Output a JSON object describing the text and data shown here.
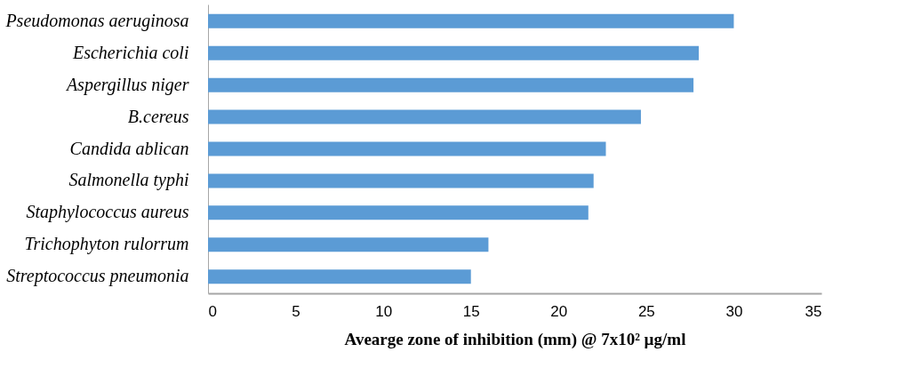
{
  "chart_data": {
    "type": "bar",
    "orientation": "horizontal",
    "xlabel": "Avearge zone of inhibition (mm) @ 7x10² µg/ml",
    "categories": [
      "Pseudomonas aeruginosa",
      "Escherichia coli",
      "Aspergillus niger",
      "B.cereus",
      "Candida ablican",
      "Salmonella typhi",
      "Staphylococcus aureus",
      "Trichophyton rulorrum",
      "Streptococcus pneumonia"
    ],
    "values": [
      30.0,
      28.0,
      27.7,
      24.7,
      22.7,
      22.0,
      21.7,
      16.0,
      15.0
    ],
    "color": "#5b9bd5",
    "xlim": [
      0,
      35
    ],
    "xticks": [
      0,
      5,
      10,
      15,
      20,
      25,
      30,
      35
    ],
    "grid": false
  }
}
